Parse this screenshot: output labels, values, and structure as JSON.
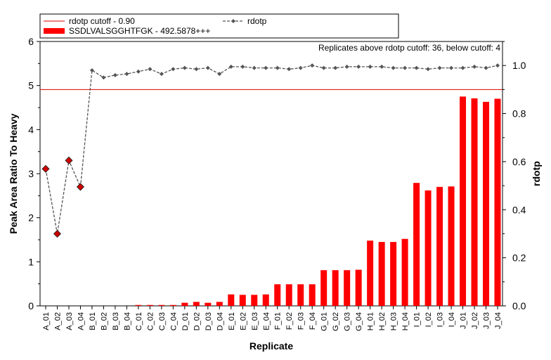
{
  "chart_data": {
    "type": "bar",
    "xlabel": "Replicate",
    "ylabel": "Peak Area Ratio To Heavy",
    "y2label": "rdotp",
    "ylim": [
      0,
      6
    ],
    "y2lim": [
      0,
      1.1
    ],
    "yticks": [
      "0",
      "1",
      "2",
      "3",
      "4",
      "5",
      "6"
    ],
    "y2ticks": [
      "0.0",
      "0.2",
      "0.4",
      "0.6",
      "0.8",
      "1.0"
    ],
    "legend": {
      "cutoff_label": "rdotp cutoff - 0.90",
      "bar_label": "SSDLVALSGGHTFGK - 492.5878+++",
      "line_label": "rdotp"
    },
    "annotation": "Replicates above rdotp cutoff: 36, below cutoff: 4",
    "cutoff": 0.9,
    "categories": [
      "A_01",
      "A_02",
      "A_03",
      "A_04",
      "B_01",
      "B_02",
      "B_03",
      "B_04",
      "C_01",
      "C_02",
      "C_03",
      "C_04",
      "D_01",
      "D_02",
      "D_03",
      "D_04",
      "E_01",
      "E_02",
      "E_03",
      "E_04",
      "F_01",
      "F_02",
      "F_03",
      "F_04",
      "G_01",
      "G_02",
      "G_03",
      "G_04",
      "H_01",
      "H_02",
      "H_03",
      "H_04",
      "I_01",
      "I_02",
      "I_03",
      "I_04",
      "J_01",
      "J_02",
      "J_03",
      "J_04"
    ],
    "series": [
      {
        "name": "SSDLVALSGGHTFGK - 492.5878+++",
        "axis": "left",
        "values": [
          0.0,
          0.0,
          0.0,
          0.0,
          0.0,
          0.0,
          0.0,
          0.0,
          0.02,
          0.02,
          0.02,
          0.02,
          0.07,
          0.09,
          0.07,
          0.09,
          0.26,
          0.25,
          0.25,
          0.26,
          0.49,
          0.49,
          0.49,
          0.49,
          0.81,
          0.81,
          0.81,
          0.82,
          1.48,
          1.45,
          1.45,
          1.52,
          2.79,
          2.62,
          2.7,
          2.71,
          4.75,
          4.71,
          4.63,
          4.7
        ]
      },
      {
        "name": "rdotp",
        "axis": "right",
        "values": [
          0.57,
          0.3,
          0.605,
          0.495,
          0.98,
          0.95,
          0.96,
          0.965,
          0.975,
          0.985,
          0.965,
          0.985,
          0.99,
          0.985,
          0.99,
          0.965,
          0.995,
          0.995,
          0.99,
          0.99,
          0.99,
          0.985,
          0.99,
          1.0,
          0.99,
          0.99,
          0.995,
          0.995,
          0.995,
          0.995,
          0.99,
          0.99,
          0.99,
          0.985,
          0.99,
          0.99,
          0.99,
          0.995,
          0.99,
          1.0
        ]
      }
    ],
    "colors": {
      "bars": "#ff0000",
      "cutoff_line": "#e00000",
      "rdotp_line": "#555555",
      "marker_below": "#cc0000"
    }
  }
}
